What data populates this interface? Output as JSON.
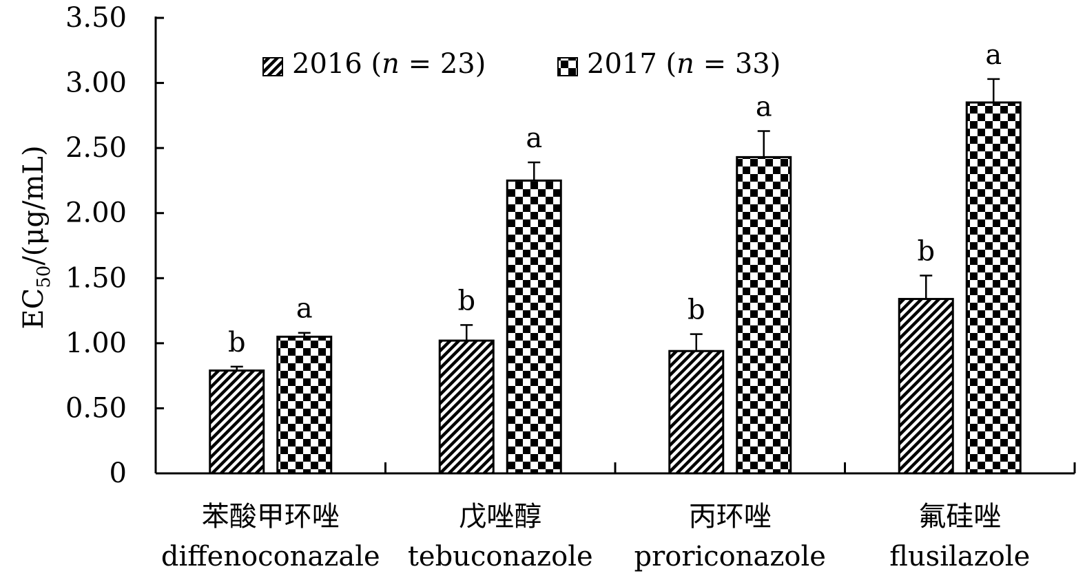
{
  "chart_data": {
    "type": "bar",
    "title": "",
    "ylabel": {
      "main": "EC",
      "sub": "50",
      "unit": "/(μg/mL)"
    },
    "ylim": [
      0,
      3.5
    ],
    "yticks": [
      "0",
      "0.50",
      "1.00",
      "1.50",
      "2.00",
      "2.50",
      "3.00",
      "3.50"
    ],
    "categories": [
      {
        "zh": "苯酸甲环唑",
        "en": "diffenoconazale"
      },
      {
        "zh": "戊唑醇",
        "en": "tebuconazole"
      },
      {
        "zh": "丙环唑",
        "en": "proriconazole"
      },
      {
        "zh": "氟硅唑",
        "en": "flusilazole"
      }
    ],
    "series": [
      {
        "name": "2016",
        "legend": {
          "year": "2016 (",
          "n": "n",
          "rest": " = 23)"
        },
        "pattern": "diagonal",
        "values": [
          0.79,
          1.02,
          0.94,
          1.34
        ],
        "errors": [
          0.03,
          0.12,
          0.13,
          0.18
        ],
        "labels": [
          "b",
          "b",
          "b",
          "b"
        ]
      },
      {
        "name": "2017",
        "legend": {
          "year": "2017 (",
          "n": "n",
          "rest": " = 33)"
        },
        "pattern": "checker",
        "values": [
          1.05,
          2.25,
          2.43,
          2.85
        ],
        "errors": [
          0.03,
          0.14,
          0.2,
          0.18
        ],
        "labels": [
          "a",
          "a",
          "a",
          "a"
        ]
      }
    ],
    "colors": {
      "ink": "#000000",
      "background": "#ffffff"
    }
  }
}
